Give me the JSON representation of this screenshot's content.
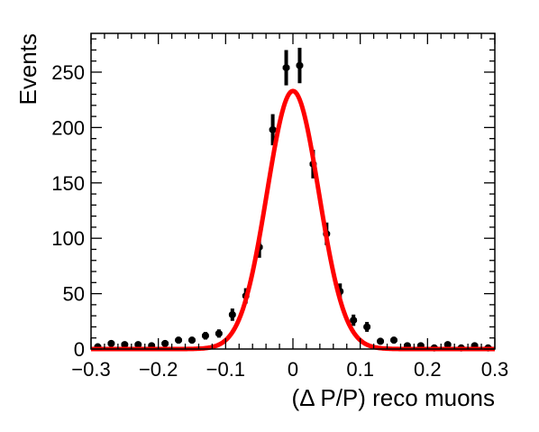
{
  "chart_data": {
    "type": "scatter",
    "title": "",
    "xlabel": "(Δ P/P) reco muons",
    "ylabel": "Events",
    "xlim": [
      -0.3,
      0.3
    ],
    "ylim": [
      0,
      285
    ],
    "grid": false,
    "legend": "none",
    "x_ticks": [
      -0.3,
      -0.2,
      -0.1,
      0,
      0.1,
      0.2,
      0.3
    ],
    "x_tick_labels": [
      "−0.3",
      "−0.2",
      "−0.1",
      "0",
      "0.1",
      "0.2",
      "0.3"
    ],
    "y_ticks": [
      0,
      50,
      100,
      150,
      200,
      250
    ],
    "y_tick_labels": [
      "0",
      "50",
      "100",
      "150",
      "200",
      "250"
    ],
    "bin_half_width": 0.005,
    "series": [
      {
        "kind": "points",
        "color": "#000000",
        "x": [
          -0.29,
          -0.27,
          -0.25,
          -0.23,
          -0.21,
          -0.19,
          -0.17,
          -0.15,
          -0.13,
          -0.11,
          -0.09,
          -0.07,
          -0.05,
          -0.03,
          -0.01,
          0.01,
          0.03,
          0.05,
          0.07,
          0.09,
          0.11,
          0.13,
          0.15,
          0.17,
          0.19,
          0.21,
          0.23,
          0.25,
          0.27,
          0.29
        ],
        "y": [
          2,
          5,
          4,
          4,
          3,
          5,
          8,
          8,
          12,
          14,
          31,
          48,
          92,
          198,
          254,
          256,
          167,
          104,
          52,
          26,
          20,
          7,
          8,
          3,
          3,
          1,
          4,
          1,
          3,
          1
        ]
      },
      {
        "kind": "fit",
        "shape": "gaussian",
        "color": "#ff0000",
        "amplitude": 233,
        "mean": 0.0,
        "sigma": 0.0385
      }
    ]
  }
}
